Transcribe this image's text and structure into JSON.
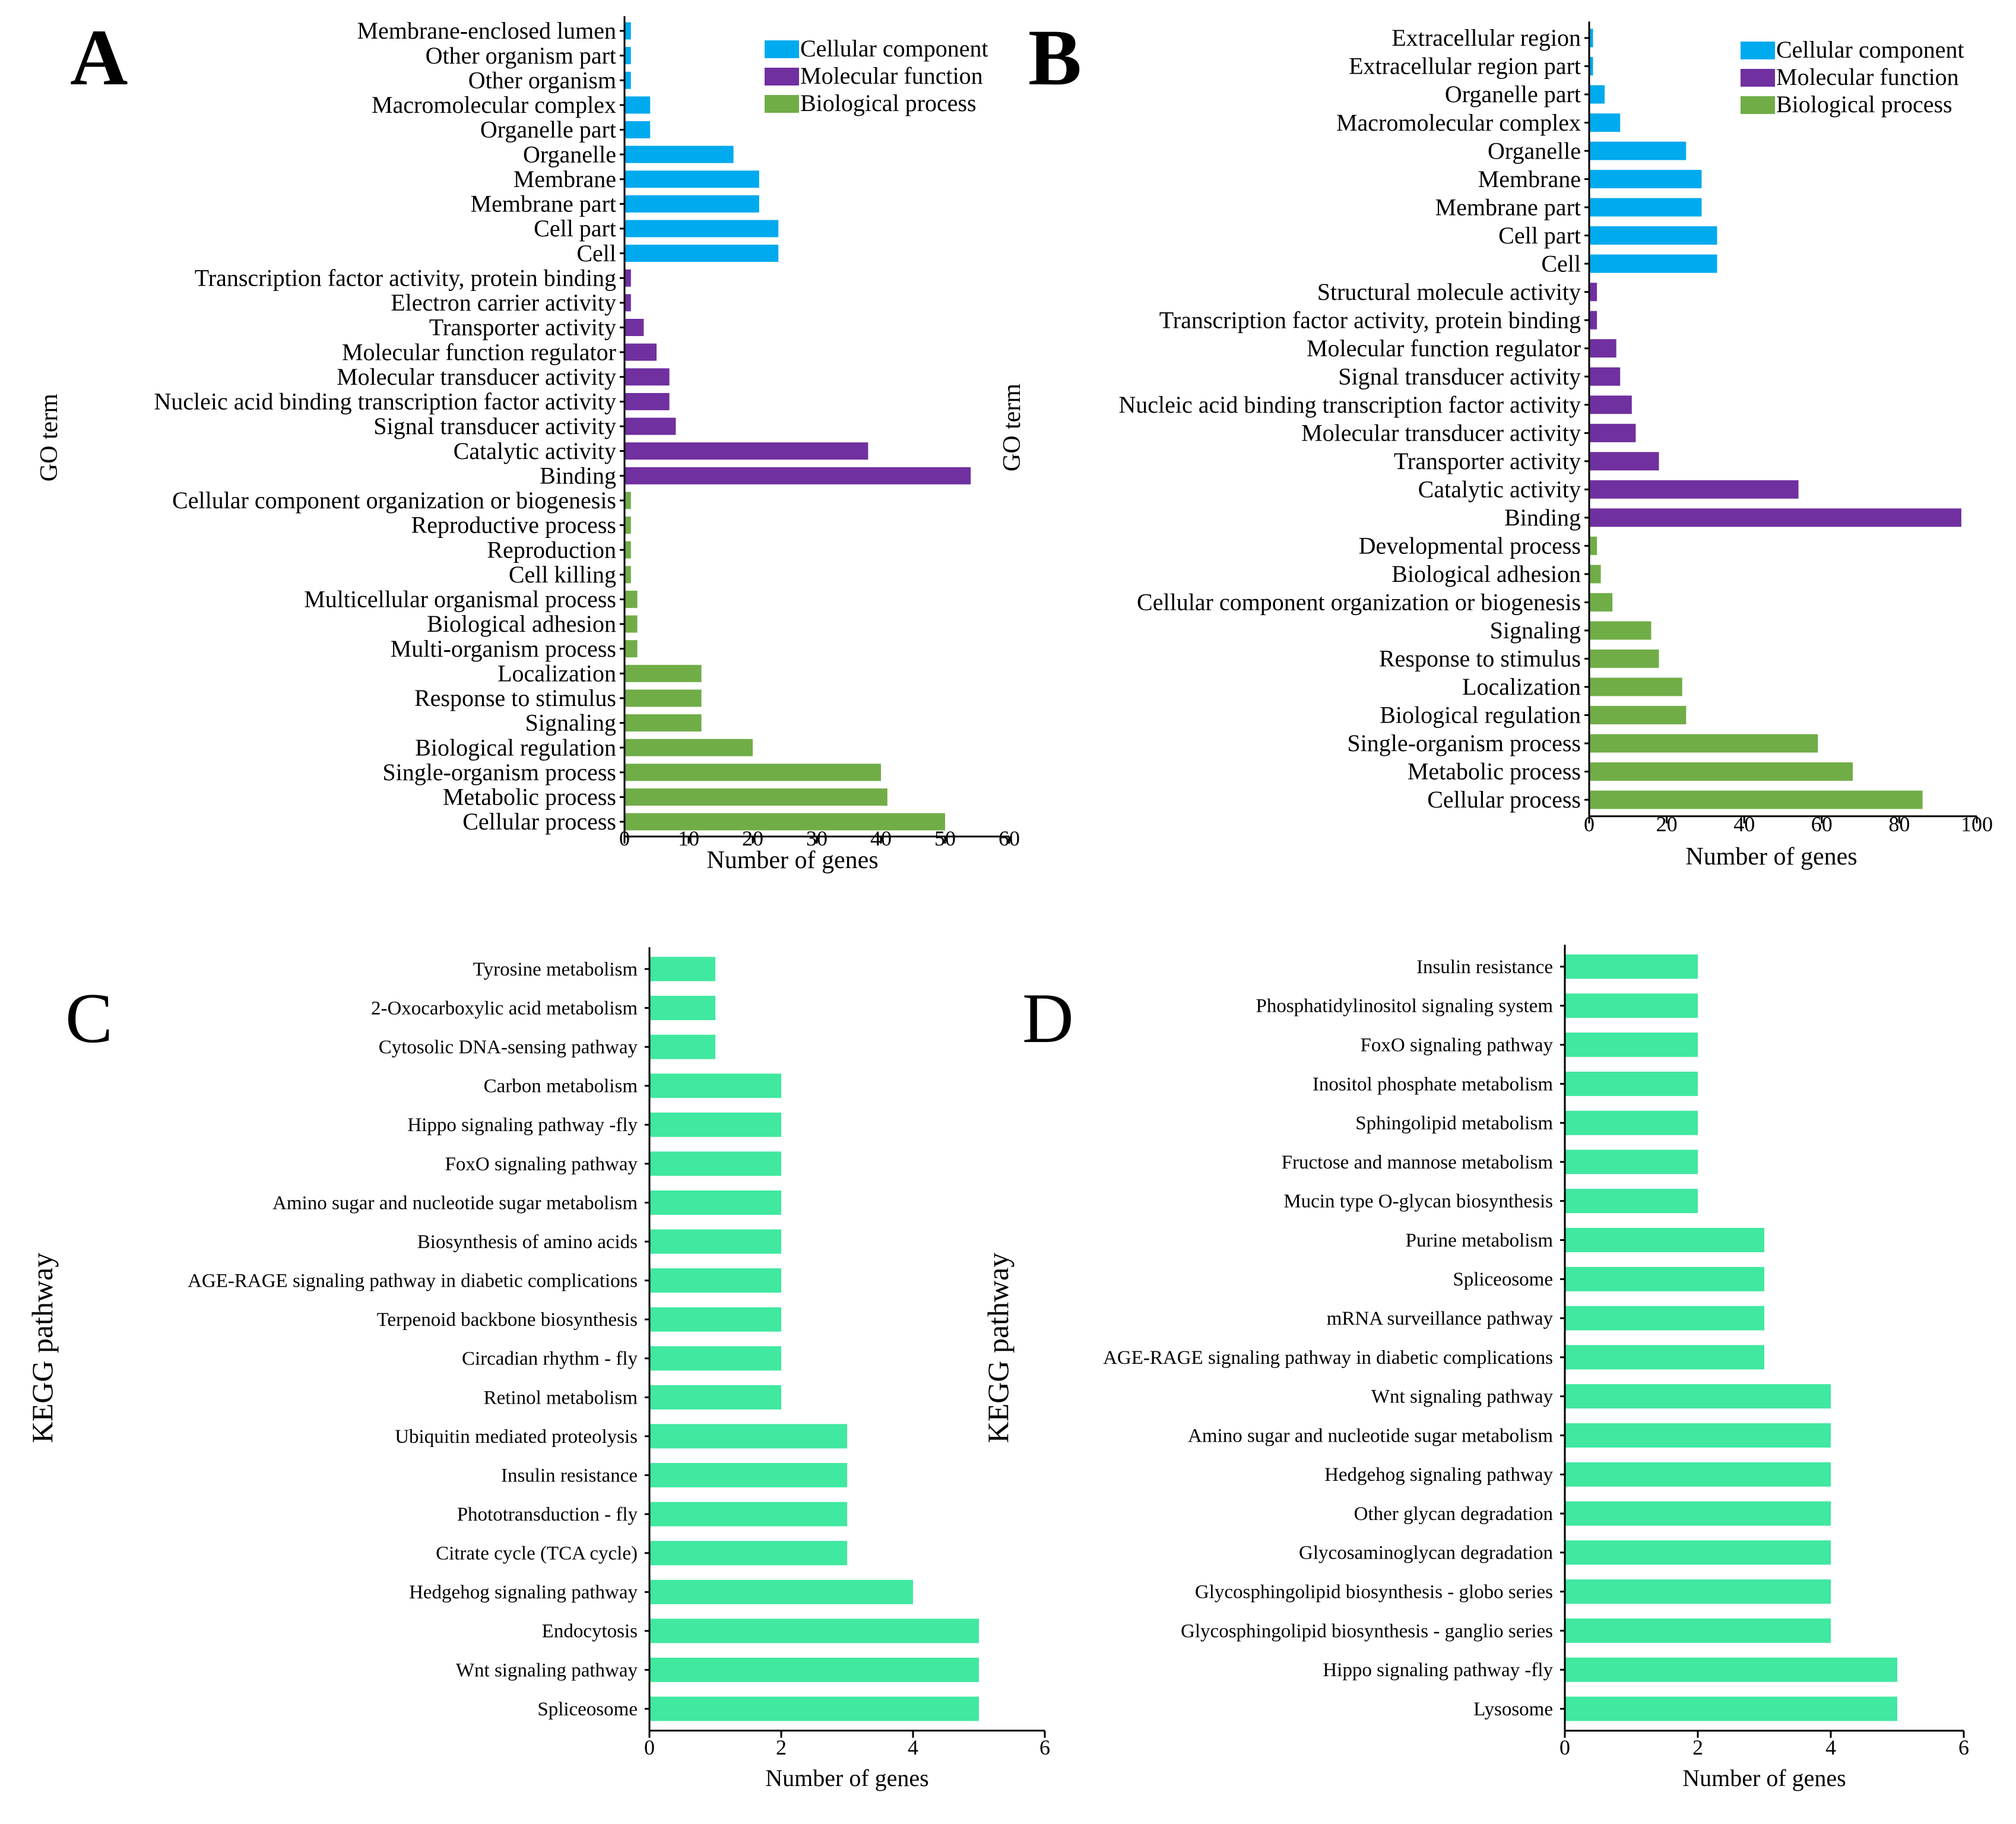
{
  "colors": {
    "cellular_component": "#00aaee",
    "molecular_function": "#7030a0",
    "biological_process": "#70ad47",
    "kegg_bar": "#40e8a0",
    "axis": "#000000"
  },
  "chart_data": [
    {
      "type": "bar",
      "orientation": "horizontal",
      "panel": "A",
      "title": "",
      "xlabel": "Number of genes",
      "ylabel": "GO term",
      "xlim": [
        0,
        60
      ],
      "xticks": [
        0,
        10,
        20,
        30,
        40,
        50,
        60
      ],
      "legend_position": "top-right",
      "legend": [
        {
          "name": "Cellular component",
          "group": "cc"
        },
        {
          "name": "Molecular function",
          "group": "mf"
        },
        {
          "name": "Biological process",
          "group": "bp"
        }
      ],
      "categories": [
        "Membrane-enclosed lumen",
        "Other organism part",
        "Other organism",
        "Macromolecular complex",
        "Organelle part",
        "Organelle",
        "Membrane",
        "Membrane part",
        "Cell part",
        "Cell",
        "Transcription factor activity, protein binding",
        "Electron carrier activity",
        "Transporter activity",
        "Molecular function regulator",
        "Molecular transducer activity",
        "Nucleic acid binding transcription factor activity",
        "Signal transducer activity",
        "Catalytic activity",
        "Binding",
        "Cellular component organization or biogenesis",
        "Reproductive process",
        "Reproduction",
        "Cell killing",
        "Multicellular organismal process",
        "Biological adhesion",
        "Multi-organism process",
        "Localization",
        "Response to stimulus",
        "Signaling",
        "Biological regulation",
        "Single-organism process",
        "Metabolic process",
        "Cellular process"
      ],
      "values": [
        1,
        1,
        1,
        4,
        4,
        17,
        21,
        21,
        24,
        24,
        1,
        1,
        3,
        5,
        7,
        7,
        8,
        38,
        54,
        1,
        1,
        1,
        1,
        2,
        2,
        2,
        12,
        12,
        12,
        20,
        40,
        41,
        50
      ],
      "groups": [
        "cc",
        "cc",
        "cc",
        "cc",
        "cc",
        "cc",
        "cc",
        "cc",
        "cc",
        "cc",
        "mf",
        "mf",
        "mf",
        "mf",
        "mf",
        "mf",
        "mf",
        "mf",
        "mf",
        "bp",
        "bp",
        "bp",
        "bp",
        "bp",
        "bp",
        "bp",
        "bp",
        "bp",
        "bp",
        "bp",
        "bp",
        "bp",
        "bp"
      ]
    },
    {
      "type": "bar",
      "orientation": "horizontal",
      "panel": "B",
      "title": "",
      "xlabel": "Number of genes",
      "ylabel": "GO term",
      "xlim": [
        0,
        100
      ],
      "xticks": [
        0,
        20,
        40,
        60,
        80,
        100
      ],
      "legend_position": "top-right",
      "legend": [
        {
          "name": "Cellular component",
          "group": "cc"
        },
        {
          "name": "Molecular function",
          "group": "mf"
        },
        {
          "name": "Biological process",
          "group": "bp"
        }
      ],
      "categories": [
        "Extracellular region",
        "Extracellular region part",
        "Organelle part",
        "Macromolecular complex",
        "Organelle",
        "Membrane",
        "Membrane part",
        "Cell part",
        "Cell",
        "Structural molecule activity",
        "Transcription factor activity, protein binding",
        "Molecular function regulator",
        "Signal transducer activity",
        "Nucleic acid binding transcription factor activity",
        "Molecular transducer activity",
        "Transporter activity",
        "Catalytic activity",
        "Binding",
        "Developmental process",
        "Biological adhesion",
        "Cellular component organization or biogenesis",
        "Signaling",
        "Response to stimulus",
        "Localization",
        "Biological regulation",
        "Single-organism process",
        "Metabolic process",
        "Cellular process"
      ],
      "values": [
        1,
        1,
        4,
        8,
        25,
        29,
        29,
        33,
        33,
        2,
        2,
        7,
        8,
        11,
        12,
        18,
        54,
        96,
        2,
        3,
        6,
        16,
        18,
        24,
        25,
        59,
        68,
        86
      ],
      "groups": [
        "cc",
        "cc",
        "cc",
        "cc",
        "cc",
        "cc",
        "cc",
        "cc",
        "cc",
        "mf",
        "mf",
        "mf",
        "mf",
        "mf",
        "mf",
        "mf",
        "mf",
        "mf",
        "bp",
        "bp",
        "bp",
        "bp",
        "bp",
        "bp",
        "bp",
        "bp",
        "bp",
        "bp"
      ]
    },
    {
      "type": "bar",
      "orientation": "horizontal",
      "panel": "C",
      "title": "",
      "xlabel": "Number of genes",
      "ylabel": "KEGG pathway",
      "xlim": [
        0,
        6
      ],
      "xticks": [
        0,
        2,
        4,
        6
      ],
      "categories": [
        "Tyrosine metabolism",
        "2-Oxocarboxylic acid metabolism",
        "Cytosolic DNA-sensing pathway",
        "Carbon metabolism",
        "Hippo signaling pathway -fly",
        "FoxO signaling pathway",
        "Amino sugar and nucleotide sugar metabolism",
        "Biosynthesis of amino acids",
        "AGE-RAGE signaling pathway in diabetic complications",
        "Terpenoid backbone biosynthesis",
        "Circadian rhythm - fly",
        "Retinol metabolism",
        "Ubiquitin mediated proteolysis",
        "Insulin resistance",
        "Phototransduction - fly",
        "Citrate cycle (TCA cycle)",
        "Hedgehog signaling pathway",
        "Endocytosis",
        "Wnt signaling pathway",
        "Spliceosome"
      ],
      "values": [
        1,
        1,
        1,
        2,
        2,
        2,
        2,
        2,
        2,
        2,
        2,
        2,
        3,
        3,
        3,
        3,
        4,
        5,
        5,
        5
      ]
    },
    {
      "type": "bar",
      "orientation": "horizontal",
      "panel": "D",
      "title": "",
      "xlabel": "Number of genes",
      "ylabel": "KEGG pathway",
      "xlim": [
        0,
        6
      ],
      "xticks": [
        0,
        2,
        4,
        6
      ],
      "categories": [
        "Insulin resistance",
        "Phosphatidylinositol signaling system",
        "FoxO signaling pathway",
        "Inositol phosphate metabolism",
        "Sphingolipid metabolism",
        "Fructose and mannose metabolism",
        "Mucin type O-glycan biosynthesis",
        "Purine metabolism",
        "Spliceosome",
        "mRNA surveillance pathway",
        "AGE-RAGE signaling pathway in diabetic complications",
        "Wnt signaling pathway",
        "Amino sugar and nucleotide sugar metabolism",
        "Hedgehog signaling pathway",
        "Other glycan degradation",
        "Glycosaminoglycan degradation",
        "Glycosphingolipid biosynthesis - globo series",
        "Glycosphingolipid biosynthesis - ganglio series",
        "Hippo signaling pathway -fly",
        "Lysosome"
      ],
      "values": [
        2,
        2,
        2,
        2,
        2,
        2,
        2,
        3,
        3,
        3,
        3,
        4,
        4,
        4,
        4,
        4,
        4,
        4,
        5,
        5
      ]
    }
  ]
}
